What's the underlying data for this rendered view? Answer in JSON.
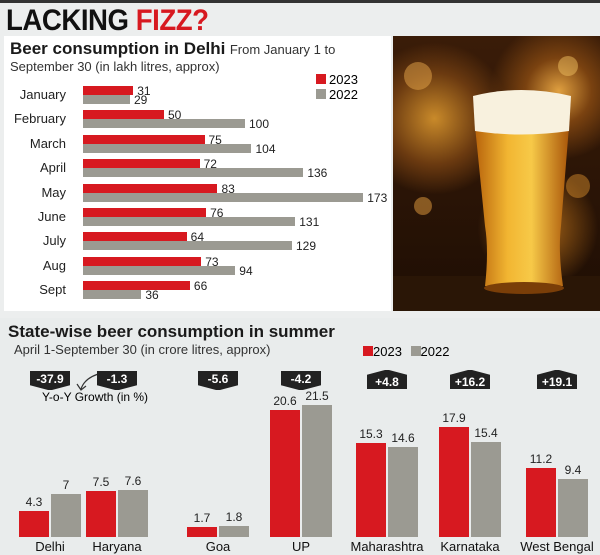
{
  "headline": {
    "part1": "LACKING ",
    "part2": "FIZZ?"
  },
  "chart_data": [
    {
      "type": "bar",
      "orientation": "horizontal",
      "title": "Beer consumption in Delhi",
      "subtitle": "From January 1 to September 30 (in lakh litres, approx)",
      "categories": [
        "January",
        "February",
        "March",
        "April",
        "May",
        "June",
        "July",
        "Aug",
        "Sept"
      ],
      "series": [
        {
          "name": "2023",
          "color": "#d71920",
          "values": [
            31,
            50,
            75,
            72,
            83,
            76,
            64,
            73,
            66
          ]
        },
        {
          "name": "2022",
          "color": "#9b9a92",
          "values": [
            29,
            100,
            104,
            136,
            173,
            131,
            129,
            94,
            36
          ]
        }
      ],
      "legend": "top-right"
    },
    {
      "type": "bar",
      "orientation": "vertical",
      "title": "State-wise beer consumption in summer",
      "subtitle": "April 1-September 30 (in crore litres, approx)",
      "categories": [
        "Delhi",
        "Haryana",
        "Goa",
        "UP",
        "Maharashtra",
        "Karnataka",
        "West Bengal"
      ],
      "series": [
        {
          "name": "2023",
          "color": "#d71920",
          "values": [
            4.3,
            7.5,
            1.7,
            20.6,
            15.3,
            17.9,
            11.2
          ]
        },
        {
          "name": "2022",
          "color": "#9b9a92",
          "values": [
            7,
            7.6,
            1.8,
            21.5,
            14.6,
            15.4,
            9.4
          ]
        }
      ],
      "growth_label": "Y-o-Y Growth (in %)",
      "growth": [
        "-37.9",
        "-1.3",
        "-5.6",
        "-4.2",
        "+4.8",
        "+16.2",
        "+19.1"
      ],
      "legend": "top-right"
    }
  ]
}
